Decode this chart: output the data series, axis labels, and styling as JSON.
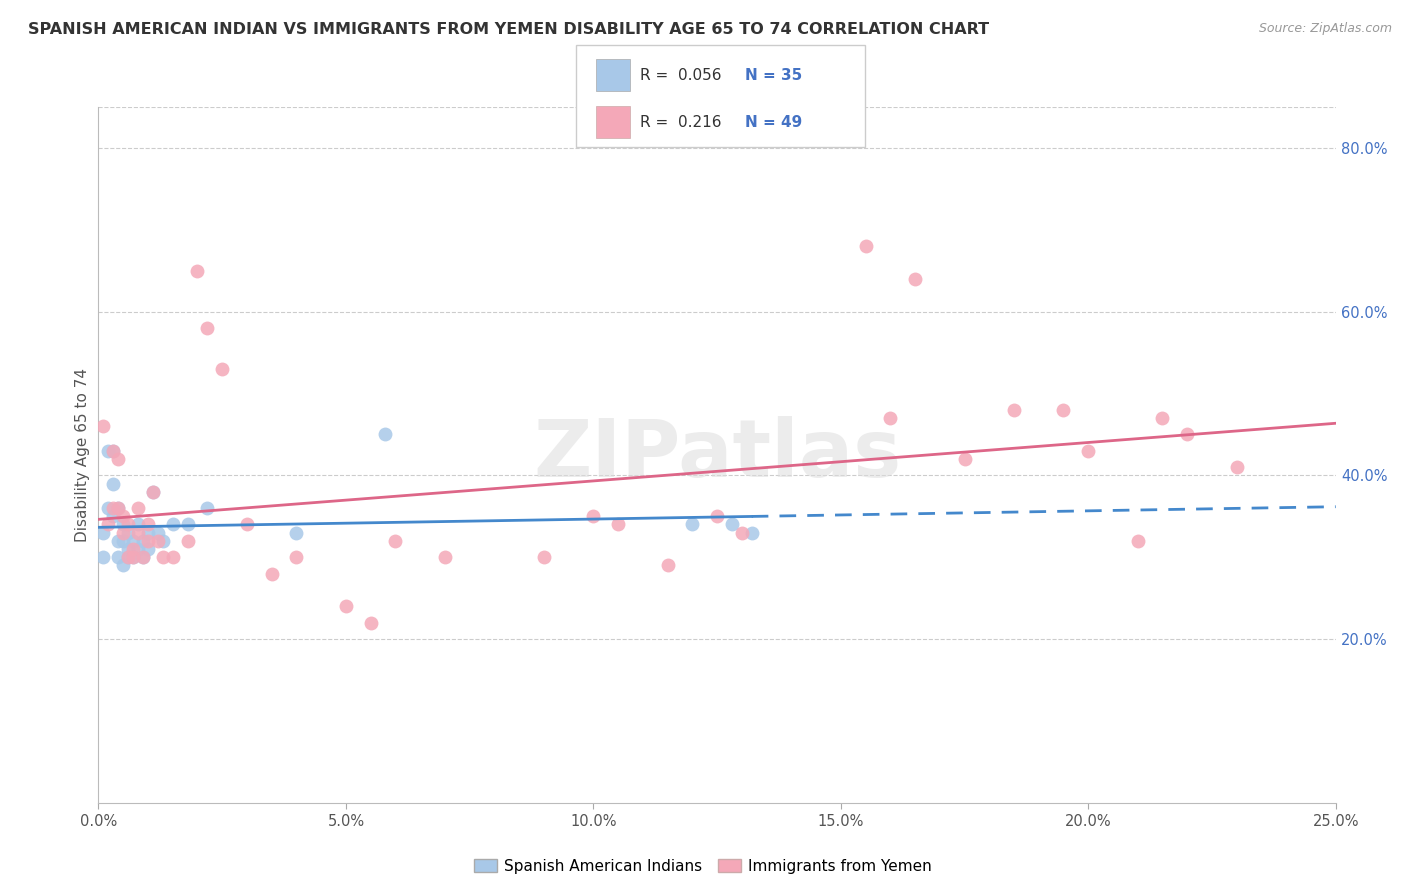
{
  "title": "SPANISH AMERICAN INDIAN VS IMMIGRANTS FROM YEMEN DISABILITY AGE 65 TO 74 CORRELATION CHART",
  "source": "Source: ZipAtlas.com",
  "ylabel": "Disability Age 65 to 74",
  "xlim": [
    0.0,
    0.25
  ],
  "ylim": [
    0.0,
    0.85
  ],
  "xtick_values": [
    0.0,
    0.05,
    0.1,
    0.15,
    0.2,
    0.25
  ],
  "xtick_labels": [
    "0.0%",
    "5.0%",
    "10.0%",
    "15.0%",
    "20.0%",
    "25.0%"
  ],
  "ytick_values": [
    0.2,
    0.4,
    0.6,
    0.8
  ],
  "ytick_labels": [
    "20.0%",
    "40.0%",
    "60.0%",
    "80.0%"
  ],
  "blue_color": "#A8C8E8",
  "pink_color": "#F4A8B8",
  "blue_line_color": "#4488CC",
  "pink_line_color": "#DD6688",
  "blue_scatter_x": [
    0.001,
    0.001,
    0.002,
    0.002,
    0.003,
    0.003,
    0.003,
    0.004,
    0.004,
    0.004,
    0.005,
    0.005,
    0.005,
    0.006,
    0.006,
    0.006,
    0.007,
    0.007,
    0.008,
    0.008,
    0.009,
    0.009,
    0.01,
    0.01,
    0.011,
    0.012,
    0.013,
    0.015,
    0.018,
    0.022,
    0.04,
    0.058,
    0.12,
    0.128,
    0.132
  ],
  "blue_scatter_y": [
    0.33,
    0.3,
    0.36,
    0.43,
    0.43,
    0.39,
    0.35,
    0.32,
    0.36,
    0.3,
    0.32,
    0.29,
    0.34,
    0.3,
    0.33,
    0.31,
    0.3,
    0.32,
    0.31,
    0.34,
    0.32,
    0.3,
    0.31,
    0.33,
    0.38,
    0.33,
    0.32,
    0.34,
    0.34,
    0.36,
    0.33,
    0.45,
    0.34,
    0.34,
    0.33
  ],
  "pink_scatter_x": [
    0.001,
    0.002,
    0.003,
    0.003,
    0.004,
    0.004,
    0.005,
    0.005,
    0.006,
    0.006,
    0.007,
    0.007,
    0.008,
    0.008,
    0.009,
    0.01,
    0.01,
    0.011,
    0.012,
    0.013,
    0.015,
    0.018,
    0.02,
    0.022,
    0.025,
    0.03,
    0.035,
    0.04,
    0.05,
    0.055,
    0.06,
    0.07,
    0.09,
    0.1,
    0.105,
    0.115,
    0.125,
    0.13,
    0.155,
    0.16,
    0.165,
    0.175,
    0.185,
    0.195,
    0.2,
    0.21,
    0.215,
    0.22,
    0.23
  ],
  "pink_scatter_y": [
    0.46,
    0.34,
    0.36,
    0.43,
    0.36,
    0.42,
    0.35,
    0.33,
    0.34,
    0.3,
    0.31,
    0.3,
    0.33,
    0.36,
    0.3,
    0.32,
    0.34,
    0.38,
    0.32,
    0.3,
    0.3,
    0.32,
    0.65,
    0.58,
    0.53,
    0.34,
    0.28,
    0.3,
    0.24,
    0.22,
    0.32,
    0.3,
    0.3,
    0.35,
    0.34,
    0.29,
    0.35,
    0.33,
    0.68,
    0.47,
    0.64,
    0.42,
    0.48,
    0.48,
    0.43,
    0.32,
    0.47,
    0.45,
    0.41
  ],
  "watermark": "ZIPatlas",
  "legend_r1": "0.056",
  "legend_n1": "35",
  "legend_r2": "0.216",
  "legend_n2": "49"
}
